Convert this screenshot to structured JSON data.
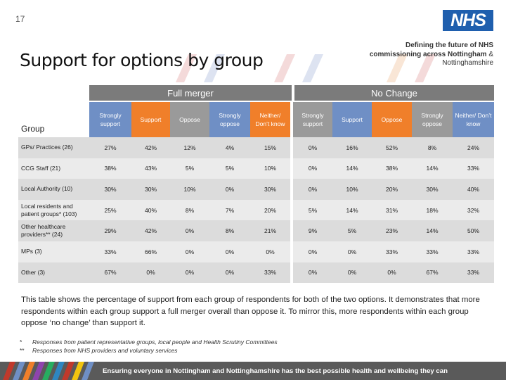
{
  "slide_number": "17",
  "logo_text": "NHS",
  "header": {
    "line1_bold": "Defining the future of NHS",
    "line2_bold": "commissioning across Nottingham",
    "line2_rest": " &",
    "line3": "Nottinghamshire"
  },
  "title": "Support for options by group",
  "groups": {
    "full_merger": "Full merger",
    "no_change": "No Change"
  },
  "table": {
    "group_header": "Group",
    "columns": [
      "Strongly support",
      "Support",
      "Oppose",
      "Strongly oppose",
      "Neither/ Don’t know",
      "Strongly support",
      "Support",
      "Oppose",
      "Strongly oppose",
      "Neither/ Don’t know"
    ],
    "rows": [
      {
        "label": "GPs/ Practices (26)",
        "values": [
          "27%",
          "42%",
          "12%",
          "4%",
          "15%",
          "0%",
          "16%",
          "52%",
          "8%",
          "24%"
        ]
      },
      {
        "label": "CCG Staff (21)",
        "values": [
          "38%",
          "43%",
          "5%",
          "5%",
          "10%",
          "0%",
          "14%",
          "38%",
          "14%",
          "33%"
        ]
      },
      {
        "label": "Local Authority (10)",
        "values": [
          "30%",
          "30%",
          "10%",
          "0%",
          "30%",
          "0%",
          "10%",
          "20%",
          "30%",
          "40%"
        ]
      },
      {
        "label": "Local residents and patient groups* (103)",
        "values": [
          "25%",
          "40%",
          "8%",
          "7%",
          "20%",
          "5%",
          "14%",
          "31%",
          "18%",
          "32%"
        ]
      },
      {
        "label": "Other healthcare providers** (24)",
        "values": [
          "29%",
          "42%",
          "0%",
          "8%",
          "21%",
          "9%",
          "5%",
          "23%",
          "14%",
          "50%"
        ]
      },
      {
        "label": "MPs (3)",
        "values": [
          "33%",
          "66%",
          "0%",
          "0%",
          "0%",
          "0%",
          "0%",
          "33%",
          "33%",
          "33%"
        ]
      },
      {
        "label": "Other (3)",
        "values": [
          "67%",
          "0%",
          "0%",
          "0%",
          "33%",
          "0%",
          "0%",
          "0%",
          "67%",
          "33%"
        ]
      }
    ]
  },
  "summary": "This table shows the percentage of support from each group of respondents for both of the two options. It demonstrates that more respondents within each group support a full merger overall than oppose it. To mirror this, more respondents within each group oppose ‘no change’ than support it.",
  "footnotes": [
    {
      "marker": "*",
      "text": "Responses from patient representative groups, local people and Health Scrutiny Committees"
    },
    {
      "marker": "**",
      "text": "Responses from NHS providers and voluntary services"
    }
  ],
  "footer_text": "Ensuring everyone in Nottingham and Nottinghamshire has the best possible health and wellbeing they can",
  "colors": {
    "nhs_blue": "#1f5fae",
    "strongly_support": "#6f8fc5",
    "support": "#f07f2a",
    "oppose": "#9a9a9a",
    "group_bar": "#7b7b7b",
    "footer": "#5a5a5a"
  }
}
